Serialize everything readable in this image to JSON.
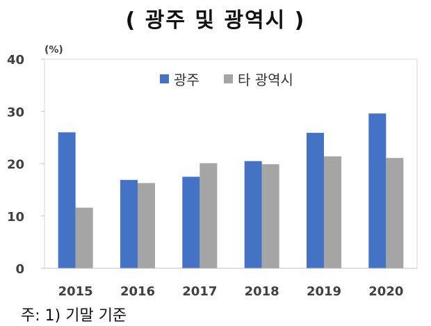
{
  "title": "( 광주 및 광역시 )",
  "footnote": "주: 1) 기말 기준",
  "chart_data": {
    "type": "bar",
    "title": "( 광주 및 광역시 )",
    "ylabel": "(%)",
    "xlabel": "",
    "ylim": [
      0,
      40
    ],
    "yticks": [
      0,
      10,
      20,
      30,
      40
    ],
    "grid": false,
    "legend": "top-center",
    "categories": [
      "2015",
      "2016",
      "2017",
      "2018",
      "2019",
      "2020"
    ],
    "series": [
      {
        "name": "광주",
        "color": "#4472c4",
        "values": [
          26.0,
          16.9,
          17.5,
          20.5,
          25.9,
          29.6
        ]
      },
      {
        "name": "타 광역시",
        "color": "#a5a5a5",
        "values": [
          11.6,
          16.3,
          20.1,
          19.9,
          21.4,
          21.1
        ]
      }
    ]
  }
}
